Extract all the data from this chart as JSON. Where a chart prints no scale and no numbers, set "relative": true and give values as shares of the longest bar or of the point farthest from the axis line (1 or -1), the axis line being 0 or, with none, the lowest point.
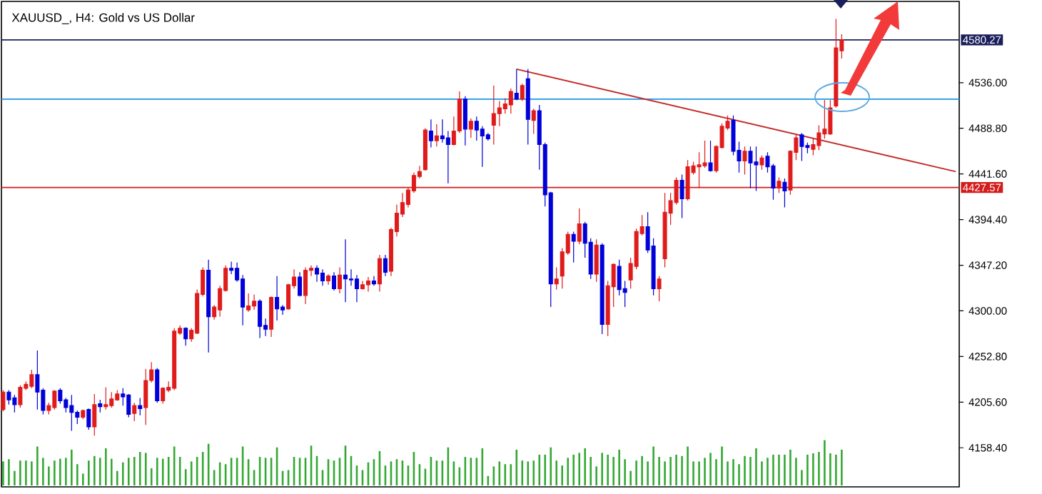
{
  "chart_data": [
    {
      "type": "candlestick",
      "title": "XAUUSD_, H4:  Gold vs US Dollar",
      "categories": [
        null,
        null,
        null,
        null,
        null,
        null,
        null,
        null,
        null,
        null,
        null,
        null,
        null,
        null,
        null,
        null,
        null,
        null,
        null,
        null,
        null,
        null,
        null,
        null,
        null,
        null,
        null,
        null,
        null,
        null,
        null,
        null,
        null,
        null,
        null,
        null,
        null,
        null,
        null,
        null,
        null,
        null,
        null,
        null,
        null,
        null,
        null,
        null,
        null,
        null,
        null,
        null,
        null,
        null,
        null,
        null,
        null,
        null,
        null,
        null,
        null,
        null,
        null,
        null,
        null,
        null,
        null,
        null,
        null,
        null,
        null,
        null,
        null,
        null,
        null,
        null,
        null,
        null,
        null,
        null,
        null,
        null,
        null,
        null,
        null,
        null,
        null,
        null,
        null,
        null,
        null,
        null,
        null,
        null,
        null,
        null,
        null,
        null,
        null,
        null,
        null,
        null,
        null,
        null,
        null,
        null,
        null,
        null,
        null,
        null,
        null,
        null,
        null,
        null,
        null,
        null,
        null,
        null,
        null,
        null,
        null,
        null,
        null,
        null,
        null,
        null,
        null,
        null,
        null,
        null,
        null,
        null,
        null,
        null,
        null,
        null,
        null,
        null,
        null,
        null,
        null,
        null,
        null,
        null,
        null,
        null,
        null,
        null,
        null,
        null,
        null,
        null,
        null,
        null,
        null,
        null,
        null,
        null,
        null,
        null,
        null,
        null,
        null,
        null,
        null,
        null,
        null,
        null
      ],
      "ohlc": [
        [
          4198,
          4218,
          4196,
          4216
        ],
        [
          4216,
          4218,
          4203,
          4208
        ],
        [
          4210,
          4213,
          4195,
          4203
        ],
        [
          4203,
          4223,
          4200,
          4221
        ],
        [
          4220,
          4227,
          4218,
          4224
        ],
        [
          4222,
          4239,
          4220,
          4234
        ],
        [
          4234,
          4259,
          4198,
          4216
        ],
        [
          4218,
          4220,
          4193,
          4197
        ],
        [
          4197,
          4205,
          4193,
          4202
        ],
        [
          4200,
          4218,
          4198,
          4217
        ],
        [
          4218,
          4220,
          4204,
          4207
        ],
        [
          4208,
          4210,
          4195,
          4200
        ],
        [
          4202,
          4213,
          4176,
          4195
        ],
        [
          4195,
          4197,
          4183,
          4190
        ],
        [
          4190,
          4198,
          4188,
          4197
        ],
        [
          4198,
          4199,
          4177,
          4180
        ],
        [
          4180,
          4214,
          4171,
          4203
        ],
        [
          4204,
          4208,
          4195,
          4201
        ],
        [
          4201,
          4221,
          4198,
          4203
        ],
        [
          4202,
          4216,
          4200,
          4209
        ],
        [
          4208,
          4218,
          4207,
          4214
        ],
        [
          4214,
          4220,
          4202,
          4211
        ],
        [
          4213,
          4214,
          4190,
          4193
        ],
        [
          4194,
          4205,
          4186,
          4202
        ],
        [
          4202,
          4210,
          4192,
          4199
        ],
        [
          4200,
          4240,
          4182,
          4228
        ],
        [
          4228,
          4247,
          4226,
          4239
        ],
        [
          4239,
          4241,
          4205,
          4207
        ],
        [
          4207,
          4221,
          4204,
          4220
        ],
        [
          4218,
          4227,
          4216,
          4221
        ],
        [
          4220,
          4282,
          4218,
          4279
        ],
        [
          4277,
          4285,
          4275,
          4282
        ],
        [
          4282,
          4283,
          4264,
          4271
        ],
        [
          4271,
          4282,
          4268,
          4280
        ],
        [
          4277,
          4322,
          4276,
          4318
        ],
        [
          4317,
          4345,
          4315,
          4342
        ],
        [
          4342,
          4353,
          4257,
          4294
        ],
        [
          4294,
          4306,
          4291,
          4304
        ],
        [
          4301,
          4326,
          4294,
          4323
        ],
        [
          4321,
          4347,
          4320,
          4344
        ],
        [
          4344,
          4351,
          4338,
          4342
        ],
        [
          4344,
          4350,
          4330,
          4332
        ],
        [
          4333,
          4337,
          4285,
          4304
        ],
        [
          4301,
          4318,
          4299,
          4305
        ],
        [
          4305,
          4317,
          4301,
          4310
        ],
        [
          4310,
          4312,
          4272,
          4284
        ],
        [
          4285,
          4292,
          4274,
          4281
        ],
        [
          4281,
          4315,
          4273,
          4314
        ],
        [
          4314,
          4336,
          4290,
          4302
        ],
        [
          4304,
          4306,
          4296,
          4301
        ],
        [
          4302,
          4328,
          4301,
          4327
        ],
        [
          4326,
          4343,
          4323,
          4335
        ],
        [
          4335,
          4340,
          4315,
          4316
        ],
        [
          4316,
          4345,
          4307,
          4342
        ],
        [
          4342,
          4347,
          4336,
          4344
        ],
        [
          4344,
          4347,
          4330,
          4338
        ],
        [
          4339,
          4343,
          4326,
          4331
        ],
        [
          4331,
          4338,
          4327,
          4336
        ],
        [
          4336,
          4340,
          4321,
          4323
        ],
        [
          4323,
          4345,
          4318,
          4337
        ],
        [
          4337,
          4374,
          4309,
          4333
        ],
        [
          4333,
          4343,
          4326,
          4332
        ],
        [
          4333,
          4337,
          4309,
          4323
        ],
        [
          4323,
          4331,
          4322,
          4327
        ],
        [
          4327,
          4335,
          4320,
          4331
        ],
        [
          4331,
          4336,
          4326,
          4328
        ],
        [
          4328,
          4358,
          4320,
          4354
        ],
        [
          4354,
          4358,
          4336,
          4340
        ],
        [
          4341,
          4386,
          4336,
          4384
        ],
        [
          4382,
          4410,
          4377,
          4401
        ],
        [
          4400,
          4422,
          4397,
          4412
        ],
        [
          4410,
          4428,
          4407,
          4425
        ],
        [
          4424,
          4443,
          4422,
          4440
        ],
        [
          4439,
          4450,
          4437,
          4444
        ],
        [
          4446,
          4489,
          4445,
          4487
        ],
        [
          4486,
          4498,
          4469,
          4476
        ],
        [
          4476,
          4493,
          4470,
          4481
        ],
        [
          4481,
          4498,
          4474,
          4478
        ],
        [
          4479,
          4486,
          4432,
          4472
        ],
        [
          4472,
          4501,
          4471,
          4486
        ],
        [
          4486,
          4527,
          4484,
          4519
        ],
        [
          4519,
          4522,
          4471,
          4488
        ],
        [
          4488,
          4499,
          4479,
          4496
        ],
        [
          4496,
          4501,
          4476,
          4487
        ],
        [
          4488,
          4491,
          4449,
          4481
        ],
        [
          4482,
          4484,
          4476,
          4478
        ],
        [
          4492,
          4533,
          4472,
          4504
        ],
        [
          4504,
          4517,
          4491,
          4510
        ],
        [
          4509,
          4520,
          4504,
          4514
        ],
        [
          4513,
          4530,
          4504,
          4527
        ],
        [
          4525,
          4550,
          4518,
          4519
        ],
        [
          4519,
          4535,
          4517,
          4533
        ],
        [
          4540,
          4550,
          4472,
          4498
        ],
        [
          4497,
          4509,
          4483,
          4507
        ],
        [
          4507,
          4513,
          4446,
          4472
        ],
        [
          4472,
          4474,
          4408,
          4420
        ],
        [
          4422,
          4423,
          4304,
          4328
        ],
        [
          4328,
          4345,
          4322,
          4333
        ],
        [
          4336,
          4365,
          4323,
          4361
        ],
        [
          4360,
          4382,
          4358,
          4379
        ],
        [
          4379,
          4382,
          4350,
          4372
        ],
        [
          4372,
          4406,
          4369,
          4390
        ],
        [
          4390,
          4392,
          4355,
          4370
        ],
        [
          4371,
          4375,
          4333,
          4338
        ],
        [
          4338,
          4374,
          4330,
          4368
        ],
        [
          4368,
          4370,
          4276,
          4286
        ],
        [
          4286,
          4331,
          4274,
          4326
        ],
        [
          4325,
          4349,
          4304,
          4348
        ],
        [
          4346,
          4353,
          4316,
          4322
        ],
        [
          4323,
          4331,
          4304,
          4319
        ],
        [
          4332,
          4355,
          4323,
          4349
        ],
        [
          4346,
          4385,
          4343,
          4382
        ],
        [
          4380,
          4399,
          4378,
          4387
        ],
        [
          4387,
          4402,
          4360,
          4363
        ],
        [
          4367,
          4375,
          4316,
          4323
        ],
        [
          4323,
          4336,
          4310,
          4333
        ],
        [
          4354,
          4422,
          4345,
          4402
        ],
        [
          4401,
          4422,
          4389,
          4414
        ],
        [
          4412,
          4438,
          4410,
          4435
        ],
        [
          4435,
          4441,
          4396,
          4416
        ],
        [
          4416,
          4456,
          4414,
          4449
        ],
        [
          4443,
          4454,
          4441,
          4450
        ],
        [
          4449,
          4464,
          4427,
          4451
        ],
        [
          4450,
          4476,
          4448,
          4453
        ],
        [
          4453,
          4476,
          4444,
          4445
        ],
        [
          4445,
          4471,
          4443,
          4470
        ],
        [
          4469,
          4494,
          4468,
          4491
        ],
        [
          4489,
          4502,
          4487,
          4496
        ],
        [
          4497,
          4502,
          4461,
          4465
        ],
        [
          4466,
          4475,
          4443,
          4455
        ],
        [
          4455,
          4470,
          4441,
          4465
        ],
        [
          4465,
          4470,
          4427,
          4453
        ],
        [
          4454,
          4470,
          4424,
          4451
        ],
        [
          4451,
          4461,
          4446,
          4458
        ],
        [
          4460,
          4464,
          4443,
          4449
        ],
        [
          4450,
          4452,
          4415,
          4427
        ],
        [
          4427,
          4438,
          4422,
          4434
        ],
        [
          4433,
          4437,
          4407,
          4424
        ],
        [
          4425,
          4466,
          4420,
          4465
        ],
        [
          4464,
          4483,
          4456,
          4479
        ],
        [
          4482,
          4484,
          4455,
          4470
        ],
        [
          4471,
          4474,
          4463,
          4469
        ],
        [
          4467,
          4479,
          4461,
          4472
        ],
        [
          4471,
          4492,
          4466,
          4484
        ],
        [
          4483,
          4518,
          4478,
          4488
        ],
        [
          4483,
          4518,
          4482,
          4510
        ],
        [
          4512,
          4602,
          4510,
          4572
        ],
        [
          4569,
          4586,
          4561,
          4580.27
        ],
        null,
        null,
        null,
        null,
        null,
        null,
        null,
        null,
        null,
        null,
        null,
        null,
        null,
        null,
        null,
        null,
        null,
        null,
        null,
        null
      ],
      "colors": [
        "#e01b1b",
        "#0000d8",
        "#0000d8",
        "#e01b1b",
        "#e01b1b",
        "#e01b1b",
        "#0000d8",
        "#0000d8",
        "#e01b1b",
        "#e01b1b",
        "#0000d8",
        "#0000d8",
        "#0000d8",
        "#0000d8",
        "#e01b1b",
        "#0000d8",
        "#e01b1b",
        "#0000d8",
        "#e01b1b",
        "#e01b1b",
        "#e01b1b",
        "#0000d8",
        "#0000d8",
        "#e01b1b",
        "#0000d8",
        "#e01b1b",
        "#e01b1b",
        "#0000d8",
        "#e01b1b",
        "#e01b1b",
        "#e01b1b",
        "#e01b1b",
        "#0000d8",
        "#e01b1b",
        "#e01b1b",
        "#e01b1b",
        "#0000d8",
        "#e01b1b",
        "#e01b1b",
        "#e01b1b",
        "#0000d8",
        "#0000d8",
        "#0000d8",
        "#e01b1b",
        "#e01b1b",
        "#0000d8",
        "#0000d8",
        "#e01b1b",
        "#0000d8",
        "#0000d8",
        "#e01b1b",
        "#e01b1b",
        "#0000d8",
        "#e01b1b",
        "#e01b1b",
        "#0000d8",
        "#0000d8",
        "#e01b1b",
        "#0000d8",
        "#e01b1b",
        "#0000d8",
        "#0000d8",
        "#0000d8",
        "#e01b1b",
        "#e01b1b",
        "#0000d8",
        "#e01b1b",
        "#0000d8",
        "#e01b1b",
        "#e01b1b",
        "#e01b1b",
        "#e01b1b",
        "#e01b1b",
        "#e01b1b",
        "#e01b1b",
        "#0000d8",
        "#e01b1b",
        "#0000d8",
        "#0000d8",
        "#e01b1b",
        "#e01b1b",
        "#0000d8",
        "#e01b1b",
        "#0000d8",
        "#0000d8",
        "#0000d8",
        "#e01b1b",
        "#e01b1b",
        "#e01b1b",
        "#e01b1b",
        "#0000d8",
        "#e01b1b",
        "#0000d8",
        "#e01b1b",
        "#0000d8",
        "#0000d8",
        "#0000d8",
        "#e01b1b",
        "#e01b1b",
        "#e01b1b",
        "#0000d8",
        "#e01b1b",
        "#0000d8",
        "#0000d8",
        "#e01b1b",
        "#0000d8",
        "#e01b1b",
        "#e01b1b",
        "#0000d8",
        "#0000d8",
        "#e01b1b",
        "#e01b1b",
        "#e01b1b",
        "#0000d8",
        "#0000d8",
        "#e01b1b",
        "#e01b1b",
        "#e01b1b",
        "#e01b1b",
        "#0000d8",
        "#e01b1b",
        "#e01b1b",
        "#e01b1b",
        "#e01b1b",
        "#0000d8",
        "#e01b1b",
        "#e01b1b",
        "#e01b1b",
        "#0000d8",
        "#0000d8",
        "#e01b1b",
        "#0000d8",
        "#0000d8",
        "#e01b1b",
        "#0000d8",
        "#0000d8",
        "#e01b1b",
        "#0000d8",
        "#e01b1b",
        "#e01b1b",
        "#0000d8",
        "#0000d8",
        "#e01b1b",
        "#e01b1b",
        "#e01b1b",
        "#e01b1b",
        "#e01b1b",
        "#e01b1b",
        null,
        null,
        null,
        null,
        null,
        null,
        null,
        null,
        null,
        null,
        null,
        null,
        null,
        null,
        null,
        null,
        null,
        null,
        null,
        null
      ],
      "series": [
        {
          "type": "line",
          "color": "#c42a2a",
          "values": [
            null,
            null,
            null,
            null,
            null,
            null,
            null,
            null,
            null,
            null,
            null,
            null,
            null,
            null,
            null,
            null,
            null,
            null,
            null,
            null,
            null,
            null,
            null,
            null,
            null,
            null,
            null,
            null,
            null,
            null,
            null,
            null,
            null,
            null,
            null,
            null,
            null,
            null,
            null,
            null,
            null,
            null,
            null,
            null,
            null,
            null,
            null,
            null,
            null,
            null,
            null,
            null,
            null,
            null,
            null,
            null,
            null,
            null,
            null,
            null,
            null,
            null,
            null,
            null,
            null,
            null,
            null,
            null,
            null,
            null,
            null,
            null,
            null,
            null,
            null,
            null,
            null,
            null,
            null,
            null,
            null,
            null,
            null,
            null,
            null,
            null,
            null,
            null,
            null,
            null,
            4550,
            null,
            null,
            null,
            null,
            null,
            null,
            null,
            null,
            null,
            null,
            null,
            null,
            null,
            null,
            null,
            null,
            null,
            null,
            null,
            null,
            null,
            null,
            null,
            null,
            null,
            null,
            null,
            null,
            null,
            null,
            null,
            null,
            null,
            null,
            null,
            null,
            null,
            null,
            null,
            null,
            null,
            null,
            null,
            null,
            null,
            null,
            null,
            null,
            null,
            null,
            null,
            null,
            null,
            null,
            null,
            null,
            null,
            null,
            null,
            null,
            null,
            null,
            null,
            null,
            null,
            null,
            null,
            null,
            null,
            null,
            null,
            null,
            null,
            null,
            null,
            null,
            4444
          ]
        }
      ],
      "ylim": [
        4118,
        4620
      ],
      "yticks": [
        {
          "value": 4536,
          "label": "4536.00"
        },
        {
          "value": 4488.8,
          "label": "4488.80"
        },
        {
          "value": 4441.6,
          "label": "4441.60"
        },
        {
          "value": 4394.4,
          "label": "4394.40"
        },
        {
          "value": 4347.2,
          "label": "4347.20"
        },
        {
          "value": 4300,
          "label": "4300.00"
        },
        {
          "value": 4252.8,
          "label": "4252.80"
        },
        {
          "value": 4205.6,
          "label": "4205.60"
        },
        {
          "value": 4158.4,
          "label": "4158.40"
        }
      ],
      "ref_lines": [
        {
          "axis": "y",
          "value": 4580.27,
          "label": "4580.27",
          "color": "#1a1f5c"
        },
        {
          "axis": "y",
          "value": 4427.57,
          "label": "4427.57",
          "color": "#d41c1c"
        },
        {
          "axis": "y",
          "value": 4519,
          "color": "#1e96e6"
        }
      ],
      "tick_labels": "y"
    },
    {
      "type": "bar",
      "relative": true,
      "color": "#33a833",
      "tick_labels": false,
      "categories": [
        null,
        null,
        null,
        null,
        null,
        null,
        null,
        null,
        null,
        null,
        null,
        null,
        null,
        null,
        null,
        null,
        null,
        null,
        null,
        null,
        null,
        null,
        null,
        null,
        null,
        null,
        null,
        null,
        null,
        null,
        null,
        null,
        null,
        null,
        null,
        null,
        null,
        null,
        null,
        null,
        null,
        null,
        null,
        null,
        null,
        null,
        null,
        null,
        null,
        null,
        null,
        null,
        null,
        null,
        null,
        null,
        null,
        null,
        null,
        null,
        null,
        null,
        null,
        null,
        null,
        null,
        null,
        null,
        null,
        null,
        null,
        null,
        null,
        null,
        null,
        null,
        null,
        null,
        null,
        null,
        null,
        null,
        null,
        null,
        null,
        null,
        null,
        null,
        null,
        null,
        null,
        null,
        null,
        null,
        null,
        null,
        null,
        null,
        null,
        null,
        null,
        null,
        null,
        null,
        null,
        null,
        null,
        null,
        null,
        null,
        null,
        null,
        null,
        null,
        null,
        null,
        null,
        null,
        null,
        null,
        null,
        null,
        null,
        null,
        null,
        null,
        null,
        null,
        null,
        null,
        null,
        null,
        null,
        null,
        null,
        null,
        null,
        null,
        null,
        null,
        null,
        null,
        null,
        null,
        null,
        null,
        null,
        null,
        null,
        null,
        null,
        null,
        null,
        null,
        null,
        null,
        null,
        null,
        null,
        null,
        null,
        null,
        null,
        null,
        null,
        null,
        null,
        null
      ],
      "values": [
        0.53,
        0.58,
        0.32,
        0.55,
        0.55,
        0.53,
        0.86,
        0.61,
        0.42,
        0.55,
        0.59,
        0.61,
        0.79,
        0.47,
        0.26,
        0.55,
        0.65,
        0.61,
        0.82,
        0.59,
        0.32,
        0.51,
        0.61,
        0.63,
        0.74,
        0.72,
        0.38,
        0.61,
        0.59,
        0.63,
        0.86,
        0.63,
        0.36,
        0.53,
        0.63,
        0.74,
        0.92,
        0.34,
        0.51,
        0.47,
        0.61,
        0.61,
        0.86,
        0.58,
        0.34,
        0.63,
        0.61,
        0.61,
        0.84,
        0.32,
        0.34,
        0.63,
        0.61,
        0.61,
        0.88,
        0.65,
        0.34,
        0.58,
        0.55,
        0.61,
        0.88,
        0.65,
        0.44,
        0.34,
        0.51,
        0.58,
        0.76,
        0.44,
        0.53,
        0.58,
        0.55,
        0.44,
        0.74,
        0.47,
        0.37,
        0.63,
        0.55,
        0.55,
        0.84,
        0.53,
        0.4,
        0.63,
        0.61,
        0.61,
        0.82,
        0.21,
        0.42,
        0.53,
        0.47,
        0.47,
        0.79,
        0.55,
        0.53,
        0.55,
        0.68,
        0.68,
        0.84,
        0.55,
        0.44,
        0.61,
        0.68,
        0.72,
        0.82,
        0.63,
        0.42,
        0.72,
        0.68,
        0.63,
        0.79,
        0.58,
        0.32,
        0.55,
        0.65,
        0.53,
        0.86,
        0.63,
        0.53,
        0.63,
        0.68,
        0.65,
        0.86,
        0.53,
        0.53,
        0.61,
        0.72,
        0.58,
        0.86,
        0.53,
        0.58,
        0.47,
        0.65,
        0.63,
        0.82,
        0.53,
        0.61,
        0.68,
        0.68,
        0.68,
        0.79,
        0.61,
        0.34,
        0.68,
        0.71,
        0.74,
        1,
        0.71,
        0.68,
        0.79,
        null,
        null,
        null,
        null,
        null,
        null,
        null,
        null,
        null,
        null,
        null,
        null,
        null,
        null,
        null,
        null,
        null,
        null,
        null,
        null
      ]
    }
  ]
}
